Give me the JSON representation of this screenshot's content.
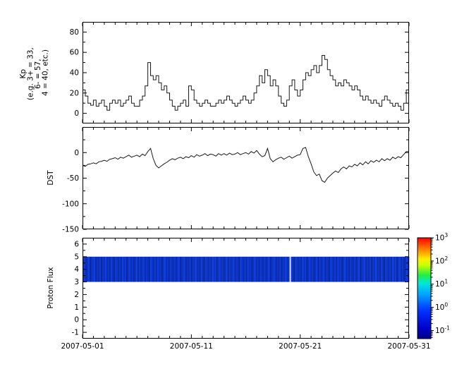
{
  "figure": {
    "background": "#ffffff",
    "line_color": "#1a1a1a",
    "axis_color": "#000000",
    "x_axis": {
      "range_days": [
        0,
        30
      ],
      "major_days": [
        0,
        10,
        20,
        30
      ],
      "minor_step_days": 1,
      "tick_labels": [
        "2007-05-01",
        "2007-05-11",
        "2007-05-21",
        "2007-05-31"
      ]
    }
  },
  "chart_data": [
    {
      "type": "line",
      "style": "step",
      "key": "kp",
      "ylabel_lines": [
        "Kp",
        "(e.g. 3+ = 33,",
        "6- = 57,",
        "4 = 40, etc.)"
      ],
      "ylim": [
        -10,
        90
      ],
      "yticks": [
        0,
        20,
        40,
        60,
        80
      ],
      "yminor_step": 10,
      "x_start_day": 0,
      "x_step_day": 0.25,
      "values": [
        23,
        17,
        10,
        8,
        13,
        7,
        10,
        13,
        7,
        3,
        10,
        13,
        10,
        13,
        7,
        10,
        13,
        17,
        10,
        7,
        7,
        13,
        17,
        27,
        50,
        37,
        33,
        37,
        30,
        23,
        27,
        20,
        13,
        7,
        3,
        7,
        10,
        13,
        7,
        27,
        23,
        13,
        10,
        7,
        10,
        13,
        10,
        7,
        7,
        10,
        13,
        10,
        13,
        17,
        13,
        10,
        7,
        10,
        13,
        17,
        13,
        10,
        13,
        20,
        27,
        37,
        30,
        43,
        37,
        27,
        33,
        27,
        17,
        10,
        7,
        13,
        27,
        33,
        23,
        17,
        23,
        33,
        40,
        37,
        43,
        47,
        40,
        47,
        57,
        53,
        43,
        37,
        33,
        27,
        30,
        27,
        33,
        30,
        27,
        23,
        27,
        23,
        17,
        13,
        17,
        13,
        10,
        13,
        10,
        7,
        13,
        17,
        13,
        10,
        7,
        10,
        7,
        3,
        10,
        23
      ]
    },
    {
      "type": "line",
      "style": "linear",
      "key": "dst",
      "ylabel": "DST",
      "ylim": [
        -150,
        50
      ],
      "yticks": [
        0,
        -50,
        -100,
        -150
      ],
      "yminor_step": 25,
      "x_start_day": 0,
      "x_step_day": 0.25,
      "values": [
        -25,
        -27,
        -23,
        -22,
        -20,
        -22,
        -18,
        -17,
        -15,
        -17,
        -13,
        -12,
        -10,
        -13,
        -9,
        -11,
        -8,
        -5,
        -9,
        -7,
        -5,
        -8,
        -3,
        -6,
        2,
        8,
        -12,
        -25,
        -30,
        -26,
        -22,
        -19,
        -15,
        -12,
        -14,
        -11,
        -9,
        -12,
        -8,
        -10,
        -6,
        -9,
        -4,
        -7,
        -5,
        -2,
        -6,
        -3,
        -4,
        -7,
        -2,
        -5,
        -2,
        -5,
        -1,
        -4,
        -3,
        0,
        -4,
        -2,
        0,
        -3,
        2,
        -1,
        4,
        -3,
        -8,
        -6,
        8,
        -12,
        -18,
        -14,
        -11,
        -9,
        -13,
        -10,
        -7,
        -11,
        -8,
        -5,
        -4,
        8,
        10,
        -8,
        -22,
        -38,
        -45,
        -42,
        -55,
        -58,
        -50,
        -45,
        -40,
        -36,
        -39,
        -32,
        -28,
        -32,
        -26,
        -28,
        -23,
        -26,
        -20,
        -24,
        -18,
        -22,
        -16,
        -19,
        -15,
        -18,
        -12,
        -16,
        -12,
        -15,
        -9,
        -12,
        -8,
        -10,
        -4,
        2
      ]
    },
    {
      "type": "heatmap",
      "key": "proton-flux",
      "ylabel": "Proton Flux",
      "ylim": [
        -1.5,
        6.5
      ],
      "yticks": [
        6,
        5,
        4,
        3,
        2,
        1,
        0,
        -1
      ],
      "yminor_step": 0.5,
      "band_y_range": [
        3,
        5
      ],
      "data_gap_days": [
        18.95,
        19.2
      ],
      "strip_values": [
        0.3,
        0.7,
        0.2,
        0.5,
        0.9,
        0.1,
        0.4,
        0.6,
        0.8,
        0.2,
        0.5,
        0.3,
        0.7,
        0.1,
        0.6,
        0.4,
        0.9,
        0.3,
        0.5,
        0.2,
        0.8,
        0.4,
        0.1,
        0.7,
        0.5,
        0.3,
        0.6,
        0.2,
        0.9,
        0.4,
        0.7,
        0.1,
        0.5,
        0.8,
        0.3,
        0.6,
        0.2,
        0.4,
        0.9,
        0.1,
        0.7,
        0.3,
        0.5,
        0.8,
        0.2,
        0.6,
        0.4,
        0.1,
        0.9,
        0.5,
        0.3,
        0.7,
        0.2,
        0.8,
        0.4,
        0.6,
        0.1,
        0.5,
        0.9,
        0.3,
        0.6,
        0.2,
        0.7,
        0.4
      ],
      "colorbar": {
        "scale": "log",
        "tick_exponents": [
          3,
          2,
          1,
          0,
          -1
        ],
        "range_exponents": [
          -1.35,
          3
        ],
        "gradient": [
          {
            "pos": 0,
            "color": "#000085"
          },
          {
            "pos": 0.1,
            "color": "#0000c8"
          },
          {
            "pos": 0.28,
            "color": "#0033ff"
          },
          {
            "pos": 0.45,
            "color": "#00aaff"
          },
          {
            "pos": 0.55,
            "color": "#00e8d8"
          },
          {
            "pos": 0.63,
            "color": "#22ee44"
          },
          {
            "pos": 0.73,
            "color": "#ccff00"
          },
          {
            "pos": 0.79,
            "color": "#ffee00"
          },
          {
            "pos": 0.88,
            "color": "#ff8800"
          },
          {
            "pos": 1,
            "color": "#ff0000"
          }
        ]
      }
    }
  ]
}
